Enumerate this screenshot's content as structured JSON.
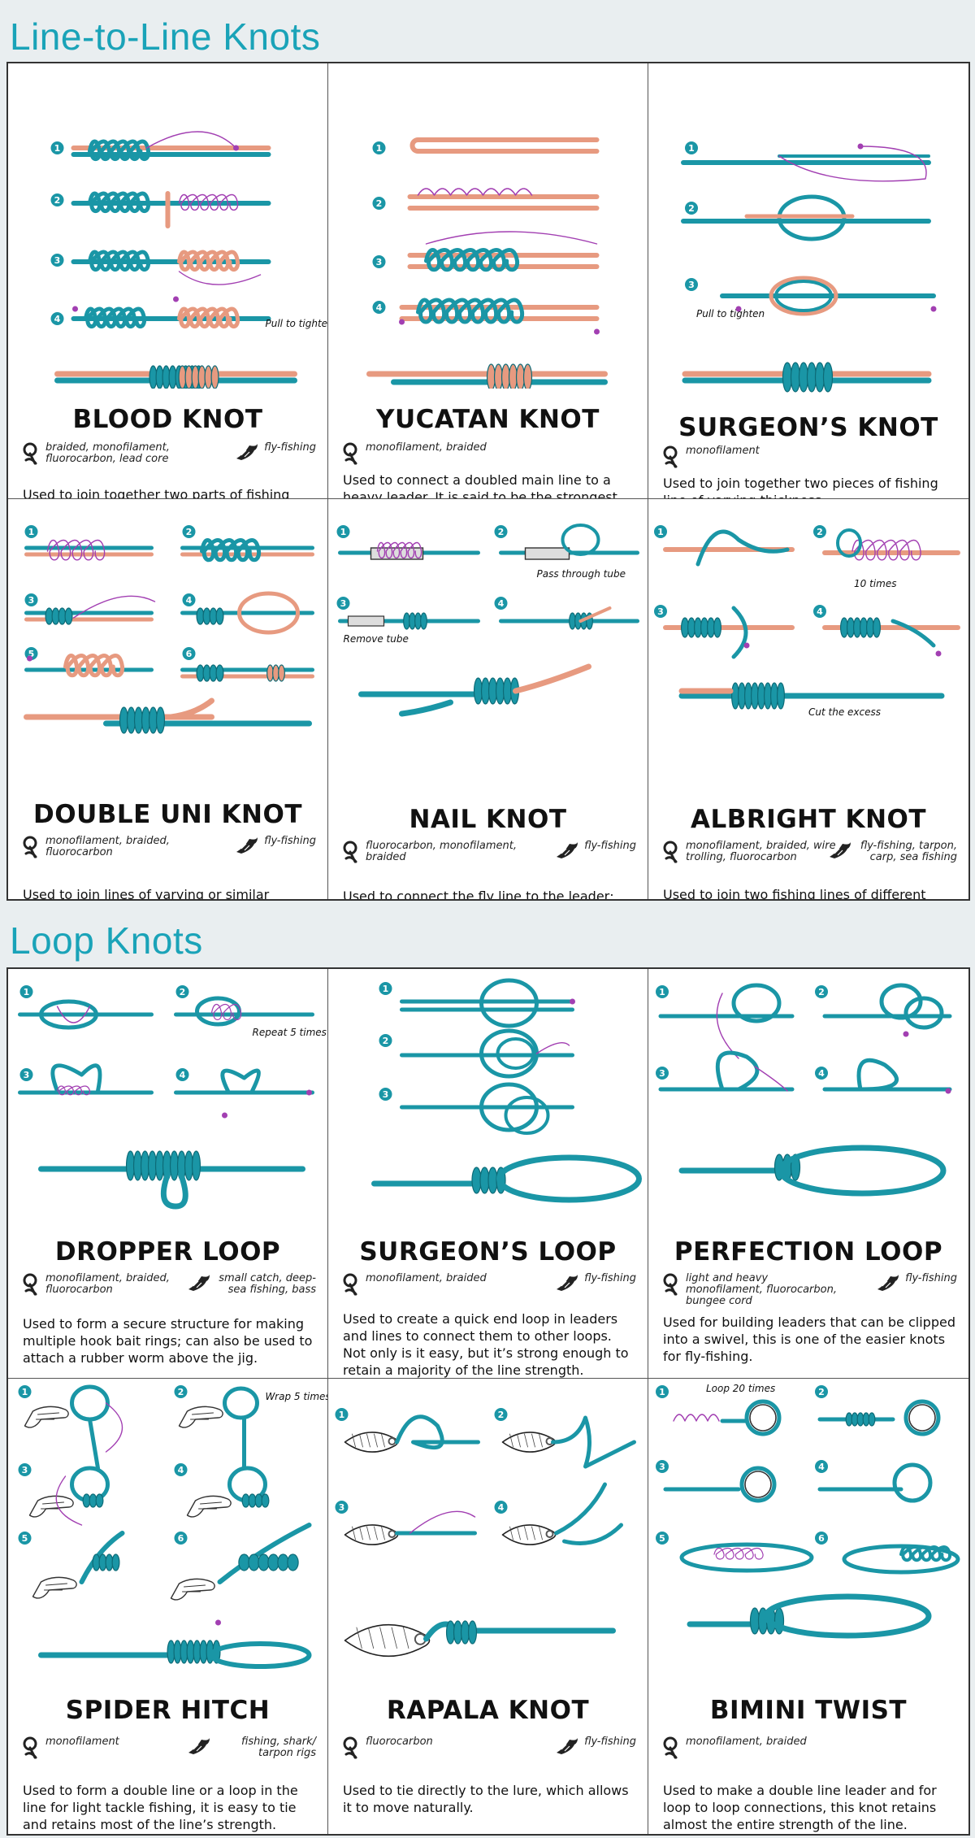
{
  "colors": {
    "title": "#1aa3b8",
    "teal": "#1a96a6",
    "salmon": "#e79a80",
    "purple": "#a23fb2"
  },
  "sections": [
    {
      "title": "Line-to-Line Knots"
    },
    {
      "title": "Loop Knots"
    }
  ],
  "knots": [
    {
      "name": "BLOOD KNOT",
      "line_types": "braided, monofilament, fluorocarbon, lead core",
      "uses": "fly-fishing",
      "description": "Used to join together two parts of fishing line with similar thickness. The IGFA considers this to be one of the top line-to-line knots.",
      "notes": [
        "Pull to tighten"
      ]
    },
    {
      "name": "YUCATAN KNOT",
      "line_types": "monofilament, braided",
      "uses": "",
      "description": "Used to connect a doubled main line to a heavy leader. It is said to be the strongest knot for monofilament leader to braided line.",
      "notes": []
    },
    {
      "name": "SURGEON’S KNOT",
      "line_types": "monofilament",
      "uses": "",
      "description": "Used to join together two pieces of fishing line of varying thickness.",
      "notes": [
        "Pull to tighten"
      ]
    },
    {
      "name": "DOUBLE UNI KNOT",
      "line_types": "monofilament, braided, fluorocarbon",
      "uses": "fly-fishing",
      "description": "Used to join lines of varying or similar strengths.",
      "notes": []
    },
    {
      "name": "NAIL KNOT",
      "line_types": "fluorocarbon, monofilament, braided",
      "uses": "fly-fishing",
      "description": "Used to connect the fly line to the leader; good for connecting two lines of different diameters.",
      "notes": [
        "Pass through tube",
        "Remove tube"
      ]
    },
    {
      "name": "ALBRIGHT KNOT",
      "line_types": "monofilament, braided, wire trolling, fluorocarbon",
      "uses": "fly-fishing, tarpon, carp, sea fishing",
      "description": "Used to join two fishing lines of different materials and diameters together.",
      "notes": [
        "10 times",
        "Cut the excess"
      ]
    },
    {
      "name": "DROPPER LOOP",
      "line_types": "monofilament, braided, fluorocarbon",
      "uses": "small catch, deep-sea fishing, bass",
      "description": "Used to form a secure structure for making multiple hook bait rings; can also be used to attach a rubber worm above the jig.",
      "notes": [
        "Repeat 5 times"
      ]
    },
    {
      "name": "SURGEON’S LOOP",
      "line_types": "monofilament, braided",
      "uses": "fly-fishing",
      "description": "Used to create a quick end loop in leaders and lines to connect them to other loops. Not only is it easy, but it’s strong enough to retain a majority of the line strength.",
      "notes": []
    },
    {
      "name": "PERFECTION LOOP",
      "line_types": "light and heavy monofilament, fluorocarbon, bungee cord",
      "uses": "fly-fishing",
      "description": "Used for building leaders that can be clipped into a swivel, this is one of the easier knots for fly-fishing.",
      "notes": []
    },
    {
      "name": "SPIDER HITCH",
      "line_types": "monofilament",
      "uses": "fishing, shark/ tarpon rigs",
      "description": "Used to form a double line or a loop in the line for light tackle fishing, it is easy to tie and retains most of the line’s strength.",
      "notes": [
        "Wrap 5 times"
      ]
    },
    {
      "name": "RAPALA KNOT",
      "line_types": "fluorocarbon",
      "uses": "fly-fishing",
      "description": "Used to tie directly to the lure, which allows it to move naturally.",
      "notes": []
    },
    {
      "name": "BIMINI TWIST",
      "line_types": "monofilament, braided",
      "uses": "",
      "description": "Used to make a double line leader and for loop to loop connections, this knot retains almost the entire strength of the line.",
      "notes": [
        "Loop 20 times"
      ]
    }
  ]
}
